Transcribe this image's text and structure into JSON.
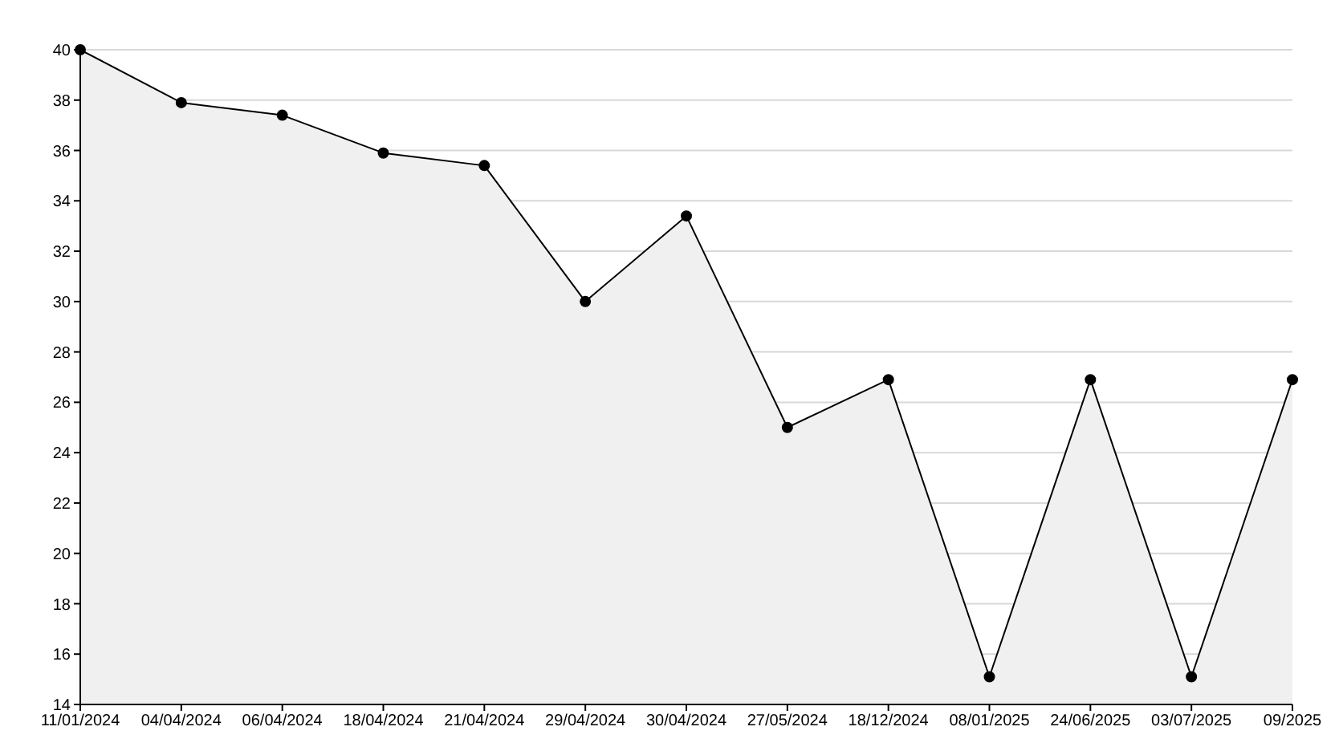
{
  "chart_data": {
    "type": "area",
    "categories": [
      "11/01/2024",
      "04/04/2024",
      "06/04/2024",
      "18/04/2024",
      "21/04/2024",
      "29/04/2024",
      "30/04/2024",
      "27/05/2024",
      "18/12/2024",
      "08/01/2025",
      "24/06/2025",
      "03/07/2025",
      "09/2025"
    ],
    "series": [
      {
        "color": "#000000",
        "values": [
          40,
          37.9,
          37.4,
          35.9,
          35.4,
          30,
          33.4,
          25,
          26.9,
          15.1,
          26.9,
          15.1,
          26.9
        ]
      }
    ],
    "ylim": [
      14,
      40
    ],
    "yticks": [
      14,
      16,
      18,
      20,
      22,
      24,
      26,
      28,
      30,
      32,
      34,
      36,
      38,
      40
    ],
    "grid": "y",
    "marker": "circle",
    "line_style": "solid"
  }
}
